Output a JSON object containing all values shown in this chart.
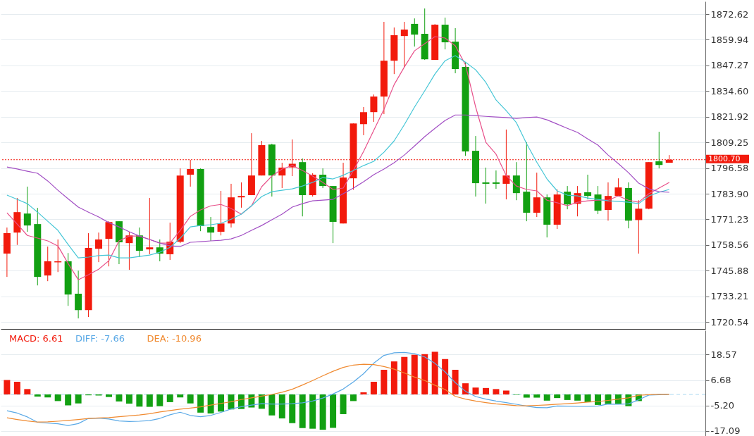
{
  "chart_data": [
    {
      "type": "candlestick",
      "categories": [
        null,
        null,
        null,
        null,
        null,
        null,
        null,
        null,
        null,
        null,
        null,
        null,
        null,
        null,
        null,
        null,
        null,
        null,
        null,
        null,
        null,
        null,
        null,
        null,
        null,
        null,
        null,
        null,
        null,
        null,
        null,
        null,
        null,
        null,
        null,
        null,
        null,
        null,
        null,
        null,
        null,
        null,
        null,
        null,
        null,
        null,
        null,
        null,
        null,
        null,
        null,
        null,
        null,
        null,
        null,
        null,
        null,
        null,
        null,
        null,
        null,
        null,
        null,
        null,
        null,
        null
      ],
      "ohlc": [
        [
          1754.3,
          1767.2,
          1742.8,
          1764.4
        ],
        [
          1764.7,
          1781.8,
          1758.6,
          1774.8
        ],
        [
          1774.1,
          1787.4,
          1765.1,
          1768.2
        ],
        [
          1768.9,
          1776.9,
          1738.6,
          1742.8
        ],
        [
          1743.5,
          1757.8,
          1740.7,
          1750.5
        ],
        [
          1750.0,
          1761.3,
          1745.2,
          1750.5
        ],
        [
          1750.5,
          1754.6,
          1728.5,
          1734.1
        ],
        [
          1734.5,
          1745.9,
          1722.3,
          1726.4
        ],
        [
          1726.4,
          1764.4,
          1723.0,
          1757.1
        ],
        [
          1756.7,
          1764.7,
          1750.1,
          1761.3
        ],
        [
          1761.6,
          1770.3,
          1748.0,
          1769.9
        ],
        [
          1770.3,
          1770.3,
          1749.1,
          1759.9
        ],
        [
          1759.5,
          1765.1,
          1746.3,
          1763.3
        ],
        [
          1763.3,
          1767.2,
          1752.6,
          1755.7
        ],
        [
          1756.4,
          1781.8,
          1754.0,
          1757.4
        ],
        [
          1757.4,
          1761.3,
          1750.5,
          1754.3
        ],
        [
          1754.0,
          1769.6,
          1751.2,
          1760.2
        ],
        [
          1760.2,
          1796.4,
          1759.5,
          1792.9
        ],
        [
          1793.3,
          1800.6,
          1787.4,
          1796.1
        ],
        [
          1796.1,
          1796.4,
          1765.4,
          1767.9
        ],
        [
          1767.5,
          1772.4,
          1760.6,
          1764.7
        ],
        [
          1765.1,
          1785.3,
          1763.3,
          1769.2
        ],
        [
          1769.2,
          1788.8,
          1767.2,
          1782.1
        ],
        [
          1782.1,
          1789.5,
          1777.0,
          1782.8
        ],
        [
          1783.2,
          1813.8,
          1783.2,
          1792.9
        ],
        [
          1792.9,
          1810.0,
          1792.9,
          1807.9
        ],
        [
          1808.2,
          1808.6,
          1782.5,
          1792.9
        ],
        [
          1792.9,
          1799.2,
          1786.7,
          1796.8
        ],
        [
          1796.9,
          1810.7,
          1792.6,
          1798.7
        ],
        [
          1799.5,
          1801.3,
          1772.7,
          1783.2
        ],
        [
          1783.2,
          1794.0,
          1782.5,
          1793.3
        ],
        [
          1793.3,
          1796.4,
          1786.7,
          1787.7
        ],
        [
          1787.7,
          1787.7,
          1759.5,
          1770.0
        ],
        [
          1769.2,
          1799.2,
          1769.2,
          1791.9
        ],
        [
          1791.5,
          1818.6,
          1785.9,
          1818.6
        ],
        [
          1818.3,
          1826.7,
          1812.8,
          1824.2
        ],
        [
          1824.2,
          1832.9,
          1819.4,
          1831.9
        ],
        [
          1831.9,
          1868.8,
          1823.2,
          1849.6
        ],
        [
          1849.6,
          1866.0,
          1843.0,
          1862.2
        ],
        [
          1861.8,
          1868.8,
          1846.5,
          1865.0
        ],
        [
          1867.8,
          1870.5,
          1856.6,
          1862.5
        ],
        [
          1862.9,
          1875.4,
          1850.0,
          1850.3
        ],
        [
          1850.0,
          1867.7,
          1850.0,
          1867.4
        ],
        [
          1867.4,
          1870.9,
          1855.2,
          1858.7
        ],
        [
          1859.0,
          1865.7,
          1843.4,
          1845.5
        ],
        [
          1846.5,
          1848.9,
          1802.6,
          1804.8
        ],
        [
          1805.1,
          1812.4,
          1782.5,
          1789.1
        ],
        [
          1789.5,
          1796.8,
          1779.0,
          1788.8
        ],
        [
          1789.5,
          1795.4,
          1786.3,
          1788.8
        ],
        [
          1788.8,
          1815.6,
          1781.1,
          1792.9
        ],
        [
          1792.9,
          1799.5,
          1780.7,
          1784.2
        ],
        [
          1784.9,
          1809.3,
          1770.3,
          1774.5
        ],
        [
          1774.5,
          1794.3,
          1772.4,
          1782.1
        ],
        [
          1782.1,
          1783.5,
          1762.3,
          1768.6
        ],
        [
          1768.6,
          1786.0,
          1766.5,
          1783.5
        ],
        [
          1784.9,
          1787.7,
          1776.2,
          1778.6
        ],
        [
          1778.9,
          1787.7,
          1772.7,
          1784.2
        ],
        [
          1784.6,
          1793.3,
          1781.1,
          1782.8
        ],
        [
          1783.5,
          1787.7,
          1773.8,
          1775.5
        ],
        [
          1775.9,
          1789.5,
          1770.6,
          1782.8
        ],
        [
          1782.8,
          1791.5,
          1782.5,
          1787.0
        ],
        [
          1786.7,
          1789.5,
          1766.8,
          1770.6
        ],
        [
          1770.9,
          1780.7,
          1754.3,
          1776.5
        ],
        [
          1776.5,
          1799.5,
          1776.2,
          1799.5
        ],
        [
          1799.9,
          1814.5,
          1796.4,
          1798.1
        ],
        [
          1799.2,
          1803.0,
          1799.2,
          1800.7
        ]
      ],
      "colors": [
        "#f21a0c",
        "#f21a0c",
        "#12a012",
        "#12a012",
        "#f21a0c",
        "#f21a0c",
        "#12a012",
        "#12a012",
        "#f21a0c",
        "#f21a0c",
        "#f21a0c",
        "#12a012",
        "#f21a0c",
        "#12a012",
        "#f21a0c",
        "#12a012",
        "#f21a0c",
        "#f21a0c",
        "#f21a0c",
        "#12a012",
        "#12a012",
        "#f21a0c",
        "#f21a0c",
        "#f21a0c",
        "#f21a0c",
        "#f21a0c",
        "#12a012",
        "#f21a0c",
        "#f21a0c",
        "#12a012",
        "#f21a0c",
        "#12a012",
        "#12a012",
        "#f21a0c",
        "#f21a0c",
        "#f21a0c",
        "#f21a0c",
        "#f21a0c",
        "#f21a0c",
        "#f21a0c",
        "#12a012",
        "#12a012",
        "#f21a0c",
        "#12a012",
        "#12a012",
        "#12a012",
        "#12a012",
        "#12a012",
        "#12a012",
        "#f21a0c",
        "#12a012",
        "#12a012",
        "#f21a0c",
        "#12a012",
        "#f21a0c",
        "#12a012",
        "#f21a0c",
        "#12a012",
        "#12a012",
        "#f21a0c",
        "#f21a0c",
        "#12a012",
        "#f21a0c",
        "#f21a0c",
        "#12a012",
        "#f21a0c"
      ],
      "series": [
        {
          "type": "line",
          "color": "#e8508a",
          "values": [
            1774.5,
            1768.9,
            1763.3,
            1762.0,
            1760.6,
            1758.1,
            1749.4,
            1741.4,
            1743.9,
            1746.6,
            1750.8,
            1760.6,
            1763.0,
            1763.0,
            1761.3,
            1759.5,
            1759.5,
            1765.8,
            1772.7,
            1775.9,
            1777.9,
            1778.6,
            1776.6,
            1773.8,
            1777.9,
            1787.4,
            1792.6,
            1796.1,
            1797.8,
            1795.4,
            1792.6,
            1789.5,
            1786.0,
            1786.7,
            1795.4,
            1804.8,
            1815.2,
            1825.6,
            1837.8,
            1846.5,
            1854.5,
            1858.0,
            1861.5,
            1860.8,
            1857.0,
            1847.6,
            1826.7,
            1809.3,
            1803.4,
            1792.9,
            1787.7,
            1786.0,
            1785.3,
            1780.7,
            1779.4,
            1778.0,
            1779.7,
            1780.4,
            1780.7,
            1780.7,
            1782.8,
            1780.7,
            1779.7,
            1783.9,
            1786.7,
            1789.5
          ]
        },
        {
          "type": "line",
          "color": "#45c6d6",
          "values": [
            1783.2,
            1781.1,
            1779.0,
            1774.8,
            1770.3,
            1765.8,
            1758.8,
            1752.2,
            1752.6,
            1753.3,
            1753.6,
            1752.2,
            1752.2,
            1752.9,
            1753.6,
            1755.0,
            1757.4,
            1761.9,
            1767.5,
            1768.2,
            1768.6,
            1769.3,
            1771.3,
            1773.8,
            1777.9,
            1782.5,
            1784.9,
            1785.6,
            1786.3,
            1787.7,
            1789.5,
            1791.9,
            1791.2,
            1793.0,
            1795.4,
            1797.8,
            1799.9,
            1804.4,
            1810.0,
            1818.0,
            1826.7,
            1834.7,
            1843.0,
            1849.6,
            1852.1,
            1848.9,
            1845.1,
            1838.9,
            1830.2,
            1824.9,
            1819.0,
            1808.6,
            1799.5,
            1791.2,
            1785.3,
            1783.2,
            1782.8,
            1781.8,
            1781.1,
            1780.4,
            1780.1,
            1779.7,
            1779.0,
            1782.8,
            1784.6,
            1786.0
          ]
        },
        {
          "type": "line",
          "color": "#a24fc4",
          "values": [
            1797.1,
            1796.1,
            1795.0,
            1794.0,
            1790.2,
            1785.6,
            1781.4,
            1777.3,
            1774.8,
            1772.4,
            1769.6,
            1767.5,
            1765.1,
            1763.0,
            1761.3,
            1759.5,
            1758.1,
            1757.8,
            1759.9,
            1760.2,
            1760.6,
            1760.9,
            1761.6,
            1763.3,
            1765.8,
            1768.2,
            1771.0,
            1773.8,
            1777.3,
            1779.0,
            1780.4,
            1780.7,
            1781.1,
            1783.9,
            1786.7,
            1789.8,
            1793.3,
            1796.1,
            1799.2,
            1803.0,
            1807.5,
            1812.1,
            1816.2,
            1820.1,
            1822.8,
            1822.8,
            1822.5,
            1822.1,
            1821.8,
            1821.5,
            1821.1,
            1821.5,
            1821.8,
            1820.4,
            1818.3,
            1816.2,
            1814.2,
            1811.0,
            1807.9,
            1803.0,
            1798.8,
            1794.3,
            1789.1,
            1786.3,
            1784.9,
            1784.6
          ]
        }
      ],
      "ylim": [
        1717.1,
        1878.9
      ],
      "yticks": [
        1872.62,
        1859.94,
        1847.27,
        {
          "value": 1834.6,
          "label": "1834.60"
        },
        1821.92,
        1809.25,
        1796.58,
        {
          "value": 1783.9,
          "label": "1783.90"
        },
        1771.23,
        1758.56,
        1745.88,
        1733.21,
        1720.54
      ],
      "ref_lines": [
        {
          "axis": "y",
          "value": 1800.7,
          "label": "1800.70",
          "color": "#f21a0c",
          "line_style": "dotted"
        }
      ],
      "grid": "y",
      "tick_labels": "y"
    },
    {
      "type": "bar",
      "categories": [
        null,
        null,
        null,
        null,
        null,
        null,
        null,
        null,
        null,
        null,
        null,
        null,
        null,
        null,
        null,
        null,
        null,
        null,
        null,
        null,
        null,
        null,
        null,
        null,
        null,
        null,
        null,
        null,
        null,
        null,
        null,
        null,
        null,
        null,
        null,
        null,
        null,
        null,
        null,
        null,
        null,
        null,
        null,
        null,
        null,
        null,
        null,
        null,
        null,
        null,
        null,
        null,
        null,
        null,
        null,
        null,
        null,
        null,
        null,
        null,
        null,
        null,
        null,
        null,
        null,
        null
      ],
      "series": [
        {
          "name": "MACD: 6.61",
          "type": "bar",
          "color": "#f21a0c",
          "values": [
            6.7,
            5.9,
            2.5,
            -1.0,
            -1.4,
            -3.1,
            -5.1,
            -4.2,
            -0.4,
            -0.5,
            -1.2,
            -3.3,
            -4.3,
            -5.7,
            -5.8,
            -5.5,
            -3.6,
            -1.4,
            -4.2,
            -8.5,
            -8.9,
            -8.0,
            -7.0,
            -6.8,
            -6.1,
            -6.7,
            -9.8,
            -11.2,
            -13.4,
            -15.7,
            -16.0,
            -16.5,
            -15.6,
            -9.2,
            -3.1,
            1.0,
            5.9,
            11.5,
            15.4,
            17.5,
            18.5,
            18.8,
            19.9,
            16.5,
            11.5,
            5.2,
            3.2,
            3.0,
            2.5,
            1.8,
            -0.2,
            -1.5,
            -1.5,
            -2.9,
            -1.7,
            -2.6,
            -2.9,
            -3.6,
            -4.9,
            -4.5,
            -4.5,
            -5.5,
            -3.1,
            null,
            null,
            null
          ],
          "colors": [
            "#f21a0c",
            "#f21a0c",
            "#f21a0c",
            "#12a012",
            "#12a012",
            "#12a012",
            "#12a012",
            "#12a012",
            "#12a012",
            "#12a012",
            "#12a012",
            "#12a012",
            "#12a012",
            "#12a012",
            "#12a012",
            "#12a012",
            "#12a012",
            "#12a012",
            "#12a012",
            "#12a012",
            "#12a012",
            "#12a012",
            "#12a012",
            "#12a012",
            "#12a012",
            "#12a012",
            "#12a012",
            "#12a012",
            "#12a012",
            "#12a012",
            "#12a012",
            "#12a012",
            "#12a012",
            "#12a012",
            "#12a012",
            "#f21a0c",
            "#f21a0c",
            "#f21a0c",
            "#f21a0c",
            "#f21a0c",
            "#f21a0c",
            "#f21a0c",
            "#f21a0c",
            "#f21a0c",
            "#f21a0c",
            "#f21a0c",
            "#f21a0c",
            "#f21a0c",
            "#f21a0c",
            "#f21a0c",
            "#12a012",
            "#12a012",
            "#12a012",
            "#12a012",
            "#12a012",
            "#12a012",
            "#12a012",
            "#12a012",
            "#12a012",
            "#12a012",
            "#12a012",
            "#12a012",
            "#12a012",
            "#12a012",
            "#12a012",
            "#12a012"
          ]
        },
        {
          "name": "DIFF: -7.66",
          "type": "line",
          "color": "#5aa9e6",
          "values": [
            -7.6,
            -8.7,
            -10.5,
            -13.0,
            -13.4,
            -13.7,
            -14.5,
            -13.6,
            -11.2,
            -11.1,
            -11.5,
            -12.4,
            -12.6,
            -12.5,
            -12.2,
            -11.2,
            -9.5,
            -8.3,
            -9.8,
            -10.4,
            -9.8,
            -8.4,
            -6.8,
            -5.7,
            -5.0,
            -4.3,
            -4.5,
            -4.5,
            -4.3,
            -3.9,
            -3.1,
            -1.7,
            0.2,
            2.5,
            5.8,
            9.7,
            14.6,
            18.2,
            19.4,
            19.6,
            19.0,
            17.5,
            14.5,
            10.5,
            5.5,
            1.5,
            -1.0,
            -2.2,
            -3.1,
            -3.8,
            -4.6,
            -5.5,
            -6.1,
            -6.2,
            -5.4,
            -5.5,
            -5.6,
            -5.6,
            -5.4,
            -4.5,
            -4.6,
            -4.4,
            -2.5,
            -0.3,
            -0.1,
            0.0
          ]
        },
        {
          "name": "DEA: -10.96",
          "type": "line",
          "color": "#f08a30",
          "values": [
            -10.9,
            -11.7,
            -12.4,
            -12.9,
            -12.8,
            -12.5,
            -12.1,
            -11.7,
            -11.2,
            -11.0,
            -10.8,
            -10.4,
            -10.0,
            -9.6,
            -9.0,
            -8.2,
            -7.5,
            -6.9,
            -6.4,
            -5.8,
            -5.0,
            -4.2,
            -3.4,
            -2.4,
            -1.6,
            -0.8,
            0.0,
            1.0,
            2.4,
            4.4,
            6.5,
            8.7,
            10.8,
            12.6,
            13.7,
            14.1,
            13.9,
            13.0,
            11.8,
            10.0,
            8.1,
            6.5,
            4.3,
            2.3,
            -0.9,
            -2.2,
            -3.1,
            -3.8,
            -4.4,
            -4.8,
            -5.2,
            -5.3,
            -5.1,
            -4.9,
            -4.6,
            -4.3,
            -4.0,
            -3.6,
            -3.3,
            -2.8,
            -2.2,
            -1.6,
            -0.4,
            -0.1,
            0.0,
            0.0
          ]
        }
      ],
      "ylim": [
        -19.4,
        29.9
      ],
      "yticks": [
        18.57,
        6.68,
        {
          "value": -5.2,
          "label": "-5.20"
        },
        -17.09
      ],
      "ref_lines": [
        {
          "axis": "y",
          "value": 0,
          "color": "#a8d8f0",
          "line_style": "dashed"
        }
      ],
      "legend": "top left",
      "grid": "y",
      "tick_labels": "y"
    }
  ]
}
